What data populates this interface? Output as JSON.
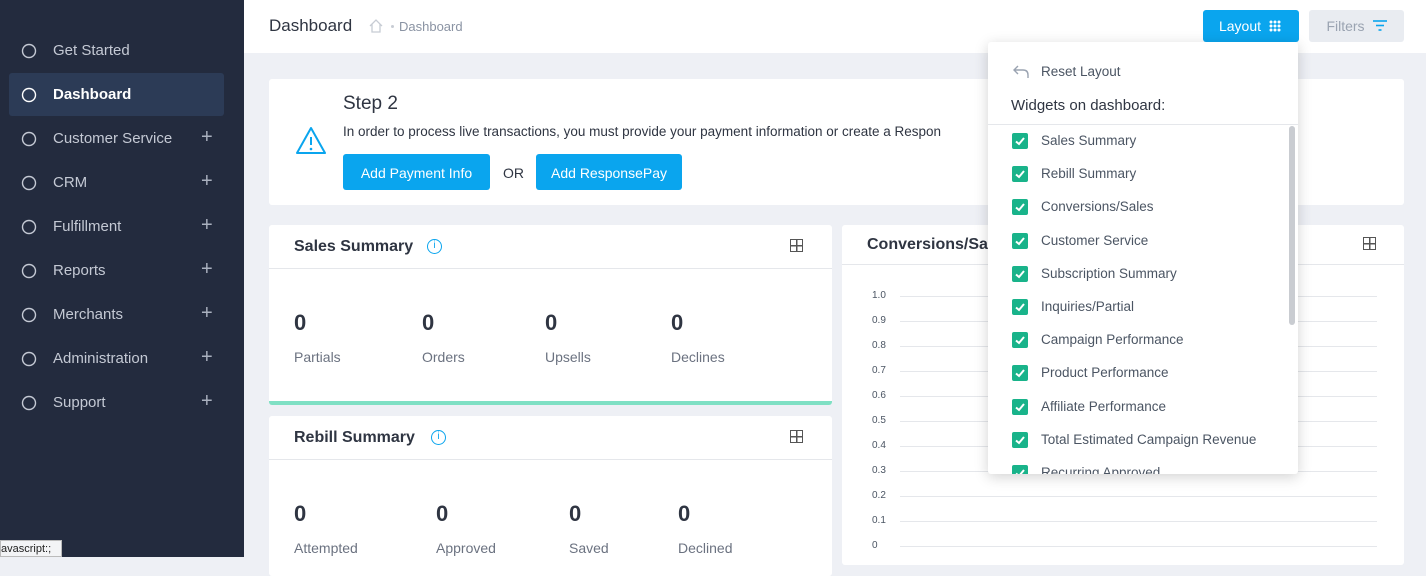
{
  "sidebar": {
    "items": [
      {
        "label": "Get Started",
        "expandable": false,
        "active": false
      },
      {
        "label": "Dashboard",
        "expandable": false,
        "active": true
      },
      {
        "label": "Customer Service",
        "expandable": true,
        "active": false
      },
      {
        "label": "CRM",
        "expandable": true,
        "active": false
      },
      {
        "label": "Fulfillment",
        "expandable": true,
        "active": false
      },
      {
        "label": "Reports",
        "expandable": true,
        "active": false
      },
      {
        "label": "Merchants",
        "expandable": true,
        "active": false
      },
      {
        "label": "Administration",
        "expandable": true,
        "active": false
      },
      {
        "label": "Support",
        "expandable": true,
        "active": false
      }
    ]
  },
  "status_bar": "avascript:;",
  "header": {
    "title": "Dashboard",
    "breadcrumb": "Dashboard",
    "layout_button": "Layout",
    "filters_button": "Filters"
  },
  "step_card": {
    "title": "Step 2",
    "text": "In order to process live transactions, you must provide your payment information or create a Respon",
    "primary_button": "Add Payment Info",
    "separator": "OR",
    "secondary_button": "Add ResponsePay"
  },
  "sales_summary": {
    "title": "Sales Summary",
    "stats": [
      {
        "value": "0",
        "label": "Partials"
      },
      {
        "value": "0",
        "label": "Orders"
      },
      {
        "value": "0",
        "label": "Upsells"
      },
      {
        "value": "0",
        "label": "Declines"
      }
    ]
  },
  "rebill_summary": {
    "title": "Rebill Summary",
    "stats": [
      {
        "value": "0",
        "label": "Attempted"
      },
      {
        "value": "0",
        "label": "Approved"
      },
      {
        "value": "0",
        "label": "Saved"
      },
      {
        "value": "0",
        "label": "Declined"
      }
    ]
  },
  "conversions_card": {
    "title": "Conversions/Sa",
    "yticks": [
      "1.0",
      "0.9",
      "0.8",
      "0.7",
      "0.6",
      "0.5",
      "0.4",
      "0.3",
      "0.2",
      "0.1",
      "0"
    ]
  },
  "layout_menu": {
    "reset": "Reset Layout",
    "heading": "Widgets on dashboard:",
    "widgets": [
      {
        "label": "Sales Summary",
        "checked": true
      },
      {
        "label": "Rebill Summary",
        "checked": true
      },
      {
        "label": "Conversions/Sales",
        "checked": true
      },
      {
        "label": "Customer Service",
        "checked": true
      },
      {
        "label": "Subscription Summary",
        "checked": true
      },
      {
        "label": "Inquiries/Partial",
        "checked": true
      },
      {
        "label": "Campaign Performance",
        "checked": true
      },
      {
        "label": "Product Performance",
        "checked": true
      },
      {
        "label": "Affiliate Performance",
        "checked": true
      },
      {
        "label": "Total Estimated Campaign Revenue",
        "checked": true
      },
      {
        "label": "Recurring Approved",
        "checked": true
      }
    ]
  }
}
